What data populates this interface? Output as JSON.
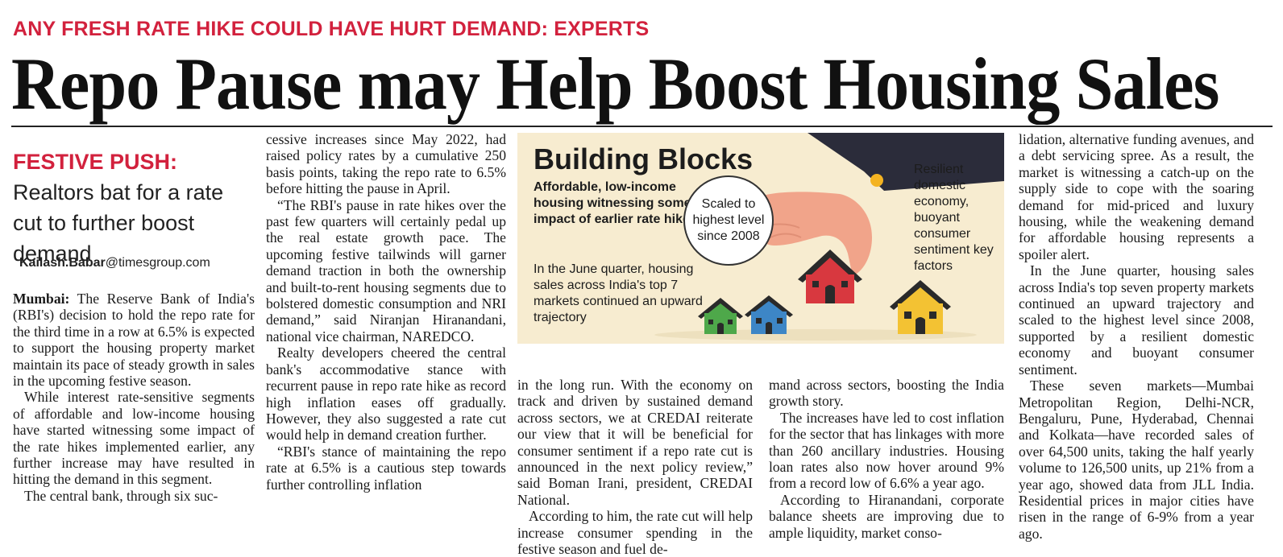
{
  "kicker": "ANY FRESH RATE HIKE COULD HAVE HURT DEMAND: EXPERTS",
  "headline": "Repo Pause may Help Boost Housing Sales",
  "deck": {
    "label": "FESTIVE PUSH:",
    "text": "Realtors bat for a rate cut to further boost demand"
  },
  "byline": {
    "name": "Kailash.Babar",
    "handle": "@timesgroup.com"
  },
  "graphic": {
    "title": "Building Blocks",
    "subtitle": "Affordable, low-income housing witnessing some impact of earlier rate hikes",
    "circle": "Scaled to highest level since 2008",
    "note": "In the June quarter, housing sales across India's top 7 markets continued an upward trajectory",
    "right": "Resilient domestic economy, buoyant consumer sentiment key factors",
    "icons": [
      "hand-icon",
      "house-red-icon",
      "house-green-icon",
      "house-blue-icon",
      "house-yellow-icon"
    ],
    "colors": {
      "background": "#f7ecd0",
      "red_house": "#d8383f",
      "green_house": "#4ea84a",
      "blue_house": "#3d86c6",
      "yellow_house": "#f3c233",
      "sleeve": "#2b2c3a",
      "hand": "#f1a48a"
    }
  },
  "col1": {
    "dateline": "Mumbai:",
    "p1": "The Reserve Bank of India's (RBI's) decision to hold the repo rate for the third time in a row at 6.5% is expected to support the housing property market maintain its pace of steady growth in sales in the upcoming festive season.",
    "p2": "While interest rate-sensitive segments of affordable and low-income housing have started witnessing some impact of the rate hikes implemented earlier, any further increase may have resulted in hitting the demand in this segment.",
    "p3": "The central bank, through six suc-"
  },
  "col2": {
    "p1": "cessive increases since May 2022, had raised policy rates by a cumulative 250 basis points, taking the repo rate to 6.5% before hitting the pause in April.",
    "p2": "“The RBI's pause in rate hikes over the past few quarters will certainly pedal up the real estate growth pace. The upcoming festive tailwinds will garner demand traction in both the ownership and built-to-rent housing segments due to bolstered domestic consumption and NRI demand,” said Niranjan Hiranandani, national vice chairman, NAREDCO.",
    "p3": "Realty developers cheered the central bank's accommodative stance with recurrent pause in repo rate hike as record high inflation eases off gradually. However, they also suggested a rate cut would help in demand creation further.",
    "p4": "“RBI's stance of maintaining the repo rate at 6.5% is a cautious step towards further controlling inflation"
  },
  "col3": {
    "p1": "in the long run. With the economy on track and driven by sustained demand across sectors, we at CREDAI reiterate our view that it will be beneficial for consumer sentiment if a repo rate cut is announced in the next policy review,” said Boman Irani, president, CREDAI National.",
    "p2": "According to him, the rate cut will help increase consumer spending in the festive season and fuel de-"
  },
  "col4": {
    "p1": "mand across sectors, boosting the India growth story.",
    "p2": "The increases have led to cost inflation for the sector that has linkages with more than 260 ancillary industries. Housing loan rates also now hover around 9% from a record low of 6.6% a year ago.",
    "p3": "According to Hiranandani, corporate balance sheets are improving due to ample liquidity, market conso-"
  },
  "col5": {
    "p1": "lidation, alternative funding avenues, and a debt servicing spree. As a result, the market is witnessing a catch-up on the supply side to cope with the soaring demand for mid-priced and luxury housing, while the weakening demand for affordable housing represents a spoiler alert.",
    "p2": "In the June quarter, housing sales across India's top seven property markets continued an upward trajectory and scaled to the highest level since 2008, supported by a resilient domestic economy and buoyant consumer sentiment.",
    "p3": "These seven markets—Mumbai Metropolitan Region, Delhi-NCR, Bengaluru, Pune, Hyderabad, Chennai and Kolkata—have recorded sales of over 64,500 units, taking the half yearly volume to 126,500 units, up 21% from a year ago, showed data from JLL India. Residential prices in major cities have risen in the range of 6-9% from a year ago."
  }
}
